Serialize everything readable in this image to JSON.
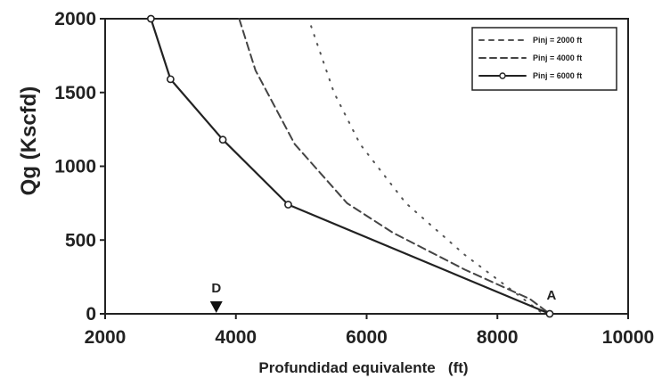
{
  "chart_data": {
    "type": "line",
    "title": "",
    "xlabel": "Profundidad equivalente   (ft)",
    "ylabel": "Qg (Kscfd)",
    "xlim": [
      2000,
      10000
    ],
    "ylim": [
      0,
      2000
    ],
    "x_ticks": [
      "2000",
      "4000",
      "6000",
      "8000",
      "10000"
    ],
    "y_ticks": [
      "0",
      "500",
      "1000",
      "1500",
      "2000"
    ],
    "grid": false,
    "legend_position": "top-right",
    "series": [
      {
        "name": "Pinj = 2000 ft",
        "style": "dotted",
        "color": "#555555",
        "points": [
          {
            "x": 5150,
            "y": 1950
          },
          {
            "x": 5500,
            "y": 1500
          },
          {
            "x": 5900,
            "y": 1150
          },
          {
            "x": 6600,
            "y": 750
          },
          {
            "x": 7500,
            "y": 400
          },
          {
            "x": 8400,
            "y": 100
          },
          {
            "x": 8700,
            "y": 0
          }
        ]
      },
      {
        "name": "Pinj = 4000 ft",
        "style": "dashed",
        "color": "#444444",
        "points": [
          {
            "x": 4050,
            "y": 2000
          },
          {
            "x": 4300,
            "y": 1650
          },
          {
            "x": 4600,
            "y": 1400
          },
          {
            "x": 4900,
            "y": 1150
          },
          {
            "x": 5300,
            "y": 950
          },
          {
            "x": 5700,
            "y": 750
          },
          {
            "x": 6400,
            "y": 550
          },
          {
            "x": 7500,
            "y": 300
          },
          {
            "x": 8500,
            "y": 100
          },
          {
            "x": 8800,
            "y": 0
          }
        ]
      },
      {
        "name": "Pinj = 6000 ft",
        "style": "solid",
        "color": "#222222",
        "markers": true,
        "points": [
          {
            "x": 2700,
            "y": 2000
          },
          {
            "x": 3000,
            "y": 1590
          },
          {
            "x": 3800,
            "y": 1180
          },
          {
            "x": 4800,
            "y": 740
          },
          {
            "x": 8800,
            "y": 0
          }
        ]
      }
    ],
    "annotations": [
      {
        "label": "D",
        "x": 3700,
        "y": 0,
        "marker": "triangle-down"
      },
      {
        "label": "A",
        "x": 8800,
        "y": 0
      }
    ]
  }
}
